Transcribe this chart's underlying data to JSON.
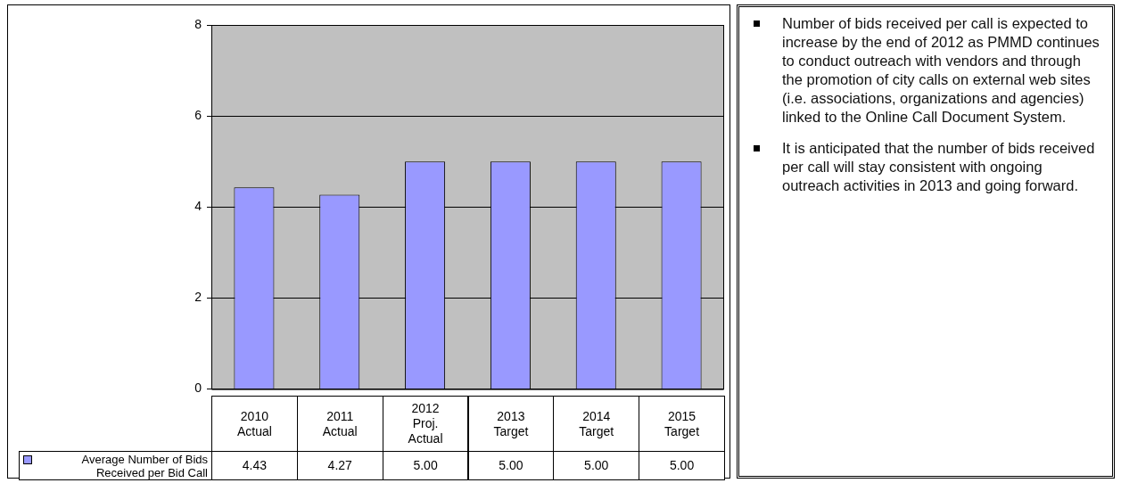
{
  "chart_data": [
    {
      "type": "bar",
      "categories": [
        "2010 Actual",
        "2011 Actual",
        "2012 Proj. Actual",
        "2013 Target",
        "2014 Target",
        "2015 Target"
      ],
      "series": [
        {
          "name": "Average Number of Bids Received per Bid Call",
          "color": "#9999ff",
          "values": [
            4.43,
            4.27,
            5.0,
            5.0,
            5.0,
            5.0
          ],
          "value_labels": [
            "4.43",
            "4.27",
            "5.00",
            "5.00",
            "5.00",
            "5.00"
          ]
        }
      ],
      "ylim": [
        0,
        8
      ],
      "yticks": [
        0,
        2,
        4,
        6,
        8
      ],
      "grid": "y",
      "legend": "bottom"
    },
    {
      "type": "other",
      "annotations": [
        "Number of bids received per call is expected to increase by the end of 2012 as PMMD continues to conduct outreach with vendors and through the promotion of city calls on external web sites (i.e. associations, organizations and agencies) linked to the Online Call Document System.",
        "It is anticipated that the number of bids received per call will stay consistent with ongoing outreach activities in 2013 and going forward."
      ]
    }
  ]
}
